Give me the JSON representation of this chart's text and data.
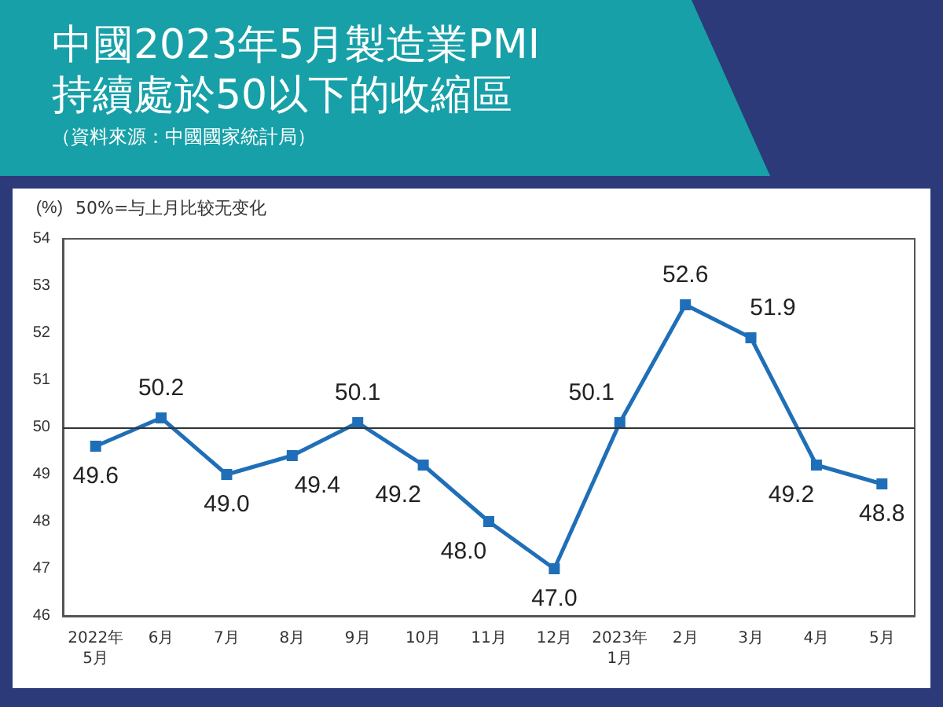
{
  "chart_data": {
    "type": "line",
    "title": "中國2023年5月製造業PMI\n持續處於50以下的收縮區",
    "subtitle": "（資料來源：中國國家統計局）",
    "ylabel": "(%)",
    "annotations": [
      "50%=与上月比较无变化"
    ],
    "categories": [
      "2022年\n5月",
      "6月",
      "7月",
      "8月",
      "9月",
      "10月",
      "11月",
      "12月",
      "2023年\n1月",
      "2月",
      "3月",
      "4月",
      "5月"
    ],
    "series": [
      {
        "color": "#1f6fb8",
        "values": [
          49.6,
          50.2,
          49.0,
          49.4,
          50.1,
          49.2,
          48.0,
          47.0,
          50.1,
          52.6,
          51.9,
          49.2,
          48.8
        ],
        "value_labels": [
          "49.6",
          "50.2",
          "49.0",
          "49.4",
          "50.1",
          "49.2",
          "48.0",
          "47.0",
          "50.1",
          "52.6",
          "51.9",
          "49.2",
          "48.8"
        ]
      }
    ],
    "ylim": [
      46,
      54
    ],
    "yticks": [
      46,
      47,
      48,
      49,
      50,
      51,
      52,
      53,
      54
    ],
    "ref_lines": [
      {
        "axis": "y",
        "value": 50,
        "color": "#333333"
      }
    ],
    "marker": "square",
    "grid": false
  }
}
